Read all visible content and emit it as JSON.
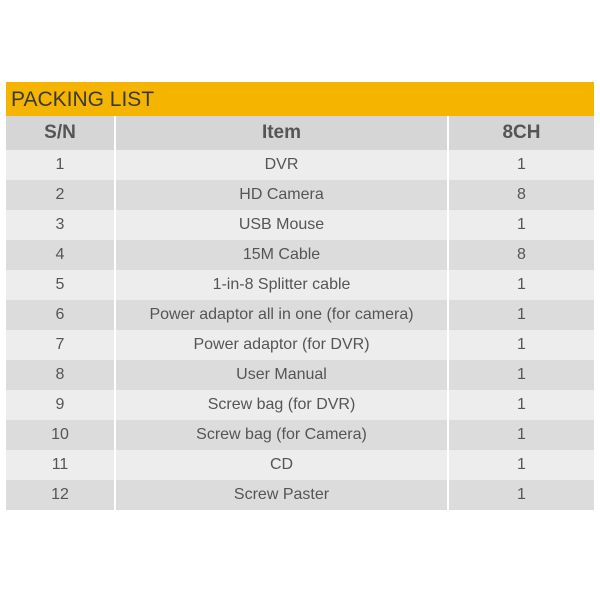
{
  "title": "PACKING LIST",
  "colors": {
    "header_bar": "#f5b400"
  },
  "columns": [
    "S/N",
    "Item",
    "8CH"
  ],
  "rows": [
    [
      "1",
      "DVR",
      "1"
    ],
    [
      "2",
      "HD Camera",
      "8"
    ],
    [
      "3",
      "USB Mouse",
      "1"
    ],
    [
      "4",
      "15M Cable",
      "8"
    ],
    [
      "5",
      "1-in-8 Splitter cable",
      "1"
    ],
    [
      "6",
      "Power adaptor all in one (for camera)",
      "1"
    ],
    [
      "7",
      "Power adaptor (for DVR)",
      "1"
    ],
    [
      "8",
      "User Manual",
      "1"
    ],
    [
      "9",
      "Screw bag (for DVR)",
      "1"
    ],
    [
      "10",
      "Screw bag (for Camera)",
      "1"
    ],
    [
      "11",
      "CD",
      "1"
    ],
    [
      "12",
      "Screw Paster",
      "1"
    ]
  ]
}
